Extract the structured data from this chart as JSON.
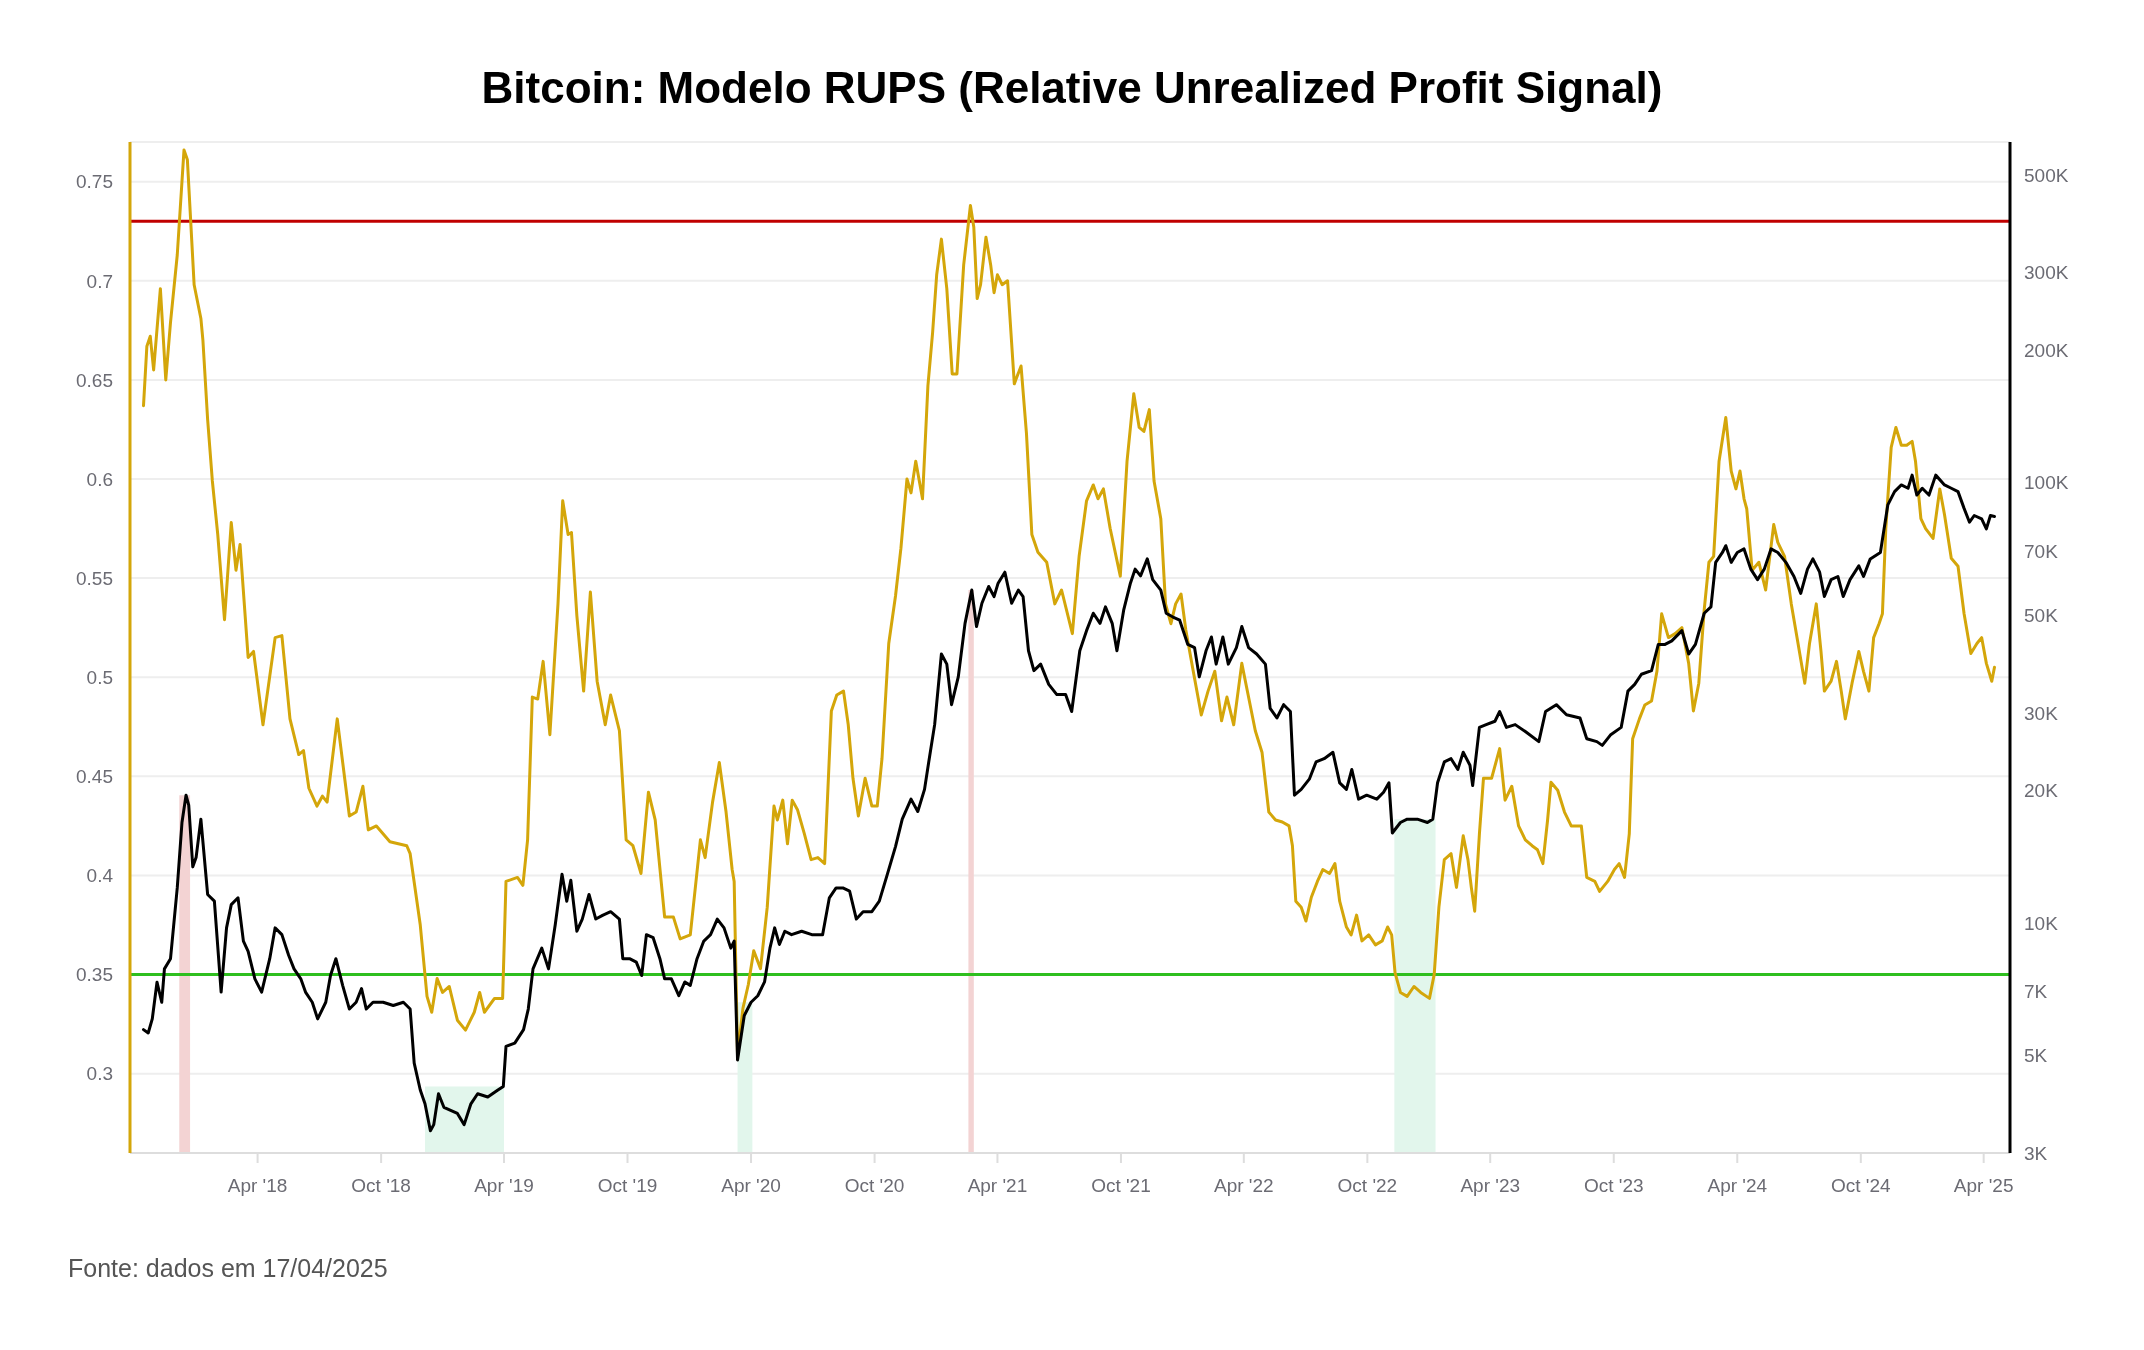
{
  "chart_data": {
    "type": "line",
    "title": "Bitcoin: Modelo RUPS (Relative Unrealized Profit Signal)",
    "annotations": [
      "Fonte: dados em 17/04/2025"
    ],
    "xlim": [
      "2017-09-24",
      "2025-05-10"
    ],
    "xticks": [
      {
        "value": "2018-04-01",
        "label": "Apr '18"
      },
      {
        "value": "2018-10-01",
        "label": "Oct '18"
      },
      {
        "value": "2019-04-01",
        "label": "Apr '19"
      },
      {
        "value": "2019-10-01",
        "label": "Oct '19"
      },
      {
        "value": "2020-04-01",
        "label": "Apr '20"
      },
      {
        "value": "2020-10-01",
        "label": "Oct '20"
      },
      {
        "value": "2021-04-01",
        "label": "Apr '21"
      },
      {
        "value": "2021-10-01",
        "label": "Oct '21"
      },
      {
        "value": "2022-04-01",
        "label": "Apr '22"
      },
      {
        "value": "2022-10-01",
        "label": "Oct '22"
      },
      {
        "value": "2023-04-01",
        "label": "Apr '23"
      },
      {
        "value": "2023-10-01",
        "label": "Oct '23"
      },
      {
        "value": "2024-04-01",
        "label": "Apr '24"
      },
      {
        "value": "2024-10-01",
        "label": "Oct '24"
      },
      {
        "value": "2025-04-01",
        "label": "Apr '25"
      }
    ],
    "ylim": [
      0.26,
      0.77
    ],
    "yticks": [
      0.3,
      0.35,
      0.4,
      0.45,
      0.5,
      0.55,
      0.6,
      0.65,
      0.7,
      0.75
    ],
    "y2lim": [
      3000,
      594000
    ],
    "y2ticks": [
      {
        "value": 3000,
        "label": "3K"
      },
      {
        "value": 5000,
        "label": "5K"
      },
      {
        "value": 7000,
        "label": "7K"
      },
      {
        "value": 10000,
        "label": "10K"
      },
      {
        "value": 20000,
        "label": "20K"
      },
      {
        "value": 30000,
        "label": "30K"
      },
      {
        "value": 50000,
        "label": "50K"
      },
      {
        "value": 70000,
        "label": "70K"
      },
      {
        "value": 100000,
        "label": "100K"
      },
      {
        "value": 200000,
        "label": "200K"
      },
      {
        "value": 300000,
        "label": "300K"
      },
      {
        "value": 500000,
        "label": "500K"
      }
    ],
    "log": "y2",
    "grid": "y",
    "ref_lines": [
      {
        "axis": "y",
        "value": 0.73,
        "color": "#c00000"
      },
      {
        "axis": "y",
        "value": 0.35,
        "color": "#2fbf1f"
      }
    ],
    "bands": [
      {
        "axis": "x",
        "from": "2017-12-06",
        "to": "2017-12-22",
        "color": "#f3d3d3"
      },
      {
        "axis": "x",
        "from": "2018-12-05",
        "to": "2019-04-01",
        "color": "#e2f6ec"
      },
      {
        "axis": "x",
        "from": "2020-03-12",
        "to": "2020-04-03",
        "color": "#e2f6ec"
      },
      {
        "axis": "x",
        "from": "2021-02-17",
        "to": "2021-02-25",
        "color": "#f3d3d3"
      },
      {
        "axis": "x",
        "from": "2022-11-10",
        "to": "2023-01-10",
        "color": "#e2f6ec"
      }
    ],
    "series": [
      {
        "color": "#d4a60a",
        "x": [
          "2017-10-14",
          "2017-10-19",
          "2017-10-24",
          "2017-10-29",
          "2017-11-08",
          "2017-11-16",
          "2017-11-23",
          "2017-12-03",
          "2017-12-13",
          "2017-12-18",
          "2017-12-28",
          "2018-01-07",
          "2018-01-10",
          "2018-01-17",
          "2018-01-24",
          "2018-02-01",
          "2018-02-11",
          "2018-02-21",
          "2018-02-28",
          "2018-03-06",
          "2018-03-18",
          "2018-03-26",
          "2018-04-09",
          "2018-04-27",
          "2018-05-07",
          "2018-05-19",
          "2018-06-01",
          "2018-06-08",
          "2018-06-16",
          "2018-06-28",
          "2018-07-06",
          "2018-07-13",
          "2018-07-28",
          "2018-08-15",
          "2018-08-25",
          "2018-09-04",
          "2018-09-12",
          "2018-09-24",
          "2018-10-14",
          "2018-11-08",
          "2018-11-13",
          "2018-11-28",
          "2018-12-08",
          "2018-12-15",
          "2018-12-23",
          "2018-12-31",
          "2019-01-10",
          "2019-01-22",
          "2019-02-03",
          "2019-02-16",
          "2019-02-24",
          "2019-03-03",
          "2019-03-18",
          "2019-03-30",
          "2019-04-04",
          "2019-04-21",
          "2019-04-29",
          "2019-05-06",
          "2019-05-13",
          "2019-05-21",
          "2019-05-29",
          "2019-06-08",
          "2019-06-20",
          "2019-06-27",
          "2019-07-05",
          "2019-07-10",
          "2019-07-18",
          "2019-07-28",
          "2019-08-07",
          "2019-08-17",
          "2019-08-29",
          "2019-09-06",
          "2019-09-19",
          "2019-09-29",
          "2019-10-09",
          "2019-10-21",
          "2019-11-01",
          "2019-11-11",
          "2019-11-25",
          "2019-12-08",
          "2019-12-18",
          "2020-01-02",
          "2020-01-17",
          "2020-01-24",
          "2020-02-04",
          "2020-02-14",
          "2020-02-24",
          "2020-03-04",
          "2020-03-07",
          "2020-03-12",
          "2020-03-20",
          "2020-03-28",
          "2020-04-05",
          "2020-04-15",
          "2020-04-25",
          "2020-05-05",
          "2020-05-10",
          "2020-05-18",
          "2020-05-25",
          "2020-06-01",
          "2020-06-09",
          "2020-06-19",
          "2020-06-29",
          "2020-07-09",
          "2020-07-19",
          "2020-07-29",
          "2020-08-06",
          "2020-08-16",
          "2020-08-23",
          "2020-08-30",
          "2020-09-07",
          "2020-09-17",
          "2020-09-27",
          "2020-10-05",
          "2020-10-12",
          "2020-10-22",
          "2020-11-01",
          "2020-11-09",
          "2020-11-18",
          "2020-11-24",
          "2020-12-01",
          "2020-12-11",
          "2020-12-19",
          "2020-12-26",
          "2021-01-01",
          "2021-01-08",
          "2021-01-16",
          "2021-01-24",
          "2021-01-31",
          "2021-02-10",
          "2021-02-20",
          "2021-02-25",
          "2021-03-02",
          "2021-03-07",
          "2021-03-15",
          "2021-03-22",
          "2021-03-27",
          "2021-04-01",
          "2021-04-08",
          "2021-04-16",
          "2021-04-26",
          "2021-05-06",
          "2021-05-14",
          "2021-05-22",
          "2021-05-31",
          "2021-06-13",
          "2021-06-25",
          "2021-07-05",
          "2021-07-21",
          "2021-07-31",
          "2021-08-11",
          "2021-08-21",
          "2021-08-28",
          "2021-09-05",
          "2021-09-15",
          "2021-09-30",
          "2021-10-10",
          "2021-10-20",
          "2021-10-28",
          "2021-11-04",
          "2021-11-12",
          "2021-11-19",
          "2021-11-29",
          "2021-12-06",
          "2021-12-14",
          "2021-12-21",
          "2021-12-29",
          "2022-01-05",
          "2022-01-15",
          "2022-01-28",
          "2022-02-07",
          "2022-02-17",
          "2022-02-27",
          "2022-03-07",
          "2022-03-17",
          "2022-03-29",
          "2022-04-08",
          "2022-04-18",
          "2022-04-28",
          "2022-05-08",
          "2022-05-18",
          "2022-05-28",
          "2022-06-07",
          "2022-06-12",
          "2022-06-17",
          "2022-06-25",
          "2022-07-02",
          "2022-07-10",
          "2022-07-19",
          "2022-07-27",
          "2022-08-06",
          "2022-08-14",
          "2022-08-21",
          "2022-08-31",
          "2022-09-07",
          "2022-09-15",
          "2022-09-23",
          "2022-10-03",
          "2022-10-13",
          "2022-10-23",
          "2022-10-31",
          "2022-11-06",
          "2022-11-11",
          "2022-11-19",
          "2022-11-29",
          "2022-12-09",
          "2022-12-19",
          "2023-01-01",
          "2023-01-08",
          "2023-01-15",
          "2023-01-23",
          "2023-02-02",
          "2023-02-10",
          "2023-02-20",
          "2023-02-27",
          "2023-03-04",
          "2023-03-09",
          "2023-03-16",
          "2023-03-22",
          "2023-04-03",
          "2023-04-15",
          "2023-04-23",
          "2023-05-03",
          "2023-05-13",
          "2023-05-23",
          "2023-06-02",
          "2023-06-10",
          "2023-06-18",
          "2023-06-25",
          "2023-06-30",
          "2023-07-10",
          "2023-07-20",
          "2023-07-30",
          "2023-08-14",
          "2023-08-22",
          "2023-09-03",
          "2023-09-10",
          "2023-09-22",
          "2023-10-02",
          "2023-10-09",
          "2023-10-17",
          "2023-10-24",
          "2023-10-29",
          "2023-11-08",
          "2023-11-16",
          "2023-11-26",
          "2023-12-04",
          "2023-12-11",
          "2023-12-21",
          "2023-12-31",
          "2024-01-10",
          "2024-01-20",
          "2024-01-27",
          "2024-02-04",
          "2024-02-12",
          "2024-02-19",
          "2024-02-26",
          "2024-03-05",
          "2024-03-15",
          "2024-03-23",
          "2024-03-30",
          "2024-04-05",
          "2024-04-11",
          "2024-04-15",
          "2024-04-23",
          "2024-05-03",
          "2024-05-13",
          "2024-05-25",
          "2024-05-31",
          "2024-06-10",
          "2024-06-20",
          "2024-06-30",
          "2024-07-10",
          "2024-07-17",
          "2024-07-27",
          "2024-08-03",
          "2024-08-08",
          "2024-08-18",
          "2024-08-26",
          "2024-09-02",
          "2024-09-08",
          "2024-09-18",
          "2024-09-28",
          "2024-10-05",
          "2024-10-13",
          "2024-10-20",
          "2024-10-28",
          "2024-11-02",
          "2024-11-07",
          "2024-11-15",
          "2024-11-22",
          "2024-11-30",
          "2024-12-08",
          "2024-12-16",
          "2024-12-21",
          "2024-12-29",
          "2025-01-05",
          "2025-01-16",
          "2025-01-26",
          "2025-02-02",
          "2025-02-12",
          "2025-02-22",
          "2025-03-03",
          "2025-03-13",
          "2025-03-22",
          "2025-03-29",
          "2025-04-05",
          "2025-04-13",
          "2025-04-17"
        ],
        "values": [
          0.637,
          0.667,
          0.672,
          0.655,
          0.696,
          0.65,
          0.679,
          0.713,
          0.766,
          0.761,
          0.698,
          0.681,
          0.67,
          0.63,
          0.599,
          0.572,
          0.529,
          0.578,
          0.554,
          0.567,
          0.51,
          0.513,
          0.476,
          0.52,
          0.521,
          0.479,
          0.461,
          0.463,
          0.444,
          0.435,
          0.44,
          0.437,
          0.479,
          0.43,
          0.432,
          0.445,
          0.423,
          0.425,
          0.417,
          0.415,
          0.411,
          0.375,
          0.339,
          0.331,
          0.348,
          0.341,
          0.344,
          0.327,
          0.322,
          0.331,
          0.341,
          0.331,
          0.338,
          0.338,
          0.397,
          0.399,
          0.395,
          0.418,
          0.49,
          0.489,
          0.508,
          0.471,
          0.537,
          0.589,
          0.572,
          0.573,
          0.531,
          0.493,
          0.543,
          0.498,
          0.476,
          0.491,
          0.473,
          0.418,
          0.415,
          0.401,
          0.442,
          0.428,
          0.379,
          0.379,
          0.368,
          0.37,
          0.418,
          0.409,
          0.437,
          0.457,
          0.432,
          0.403,
          0.397,
          0.309,
          0.333,
          0.345,
          0.362,
          0.353,
          0.384,
          0.435,
          0.428,
          0.438,
          0.416,
          0.438,
          0.433,
          0.421,
          0.408,
          0.409,
          0.406,
          0.483,
          0.491,
          0.493,
          0.476,
          0.449,
          0.43,
          0.449,
          0.435,
          0.435,
          0.459,
          0.517,
          0.541,
          0.565,
          0.6,
          0.593,
          0.609,
          0.59,
          0.647,
          0.674,
          0.703,
          0.721,
          0.696,
          0.653,
          0.653,
          0.708,
          0.738,
          0.727,
          0.691,
          0.698,
          0.722,
          0.708,
          0.694,
          0.703,
          0.698,
          0.7,
          0.648,
          0.657,
          0.623,
          0.572,
          0.563,
          0.558,
          0.537,
          0.544,
          0.522,
          0.561,
          0.589,
          0.597,
          0.59,
          0.595,
          0.575,
          0.551,
          0.609,
          0.643,
          0.626,
          0.624,
          0.635,
          0.599,
          0.58,
          0.537,
          0.527,
          0.537,
          0.542,
          0.524,
          0.505,
          0.481,
          0.493,
          0.503,
          0.478,
          0.49,
          0.476,
          0.507,
          0.49,
          0.473,
          0.462,
          0.432,
          0.428,
          0.427,
          0.425,
          0.415,
          0.387,
          0.384,
          0.377,
          0.389,
          0.397,
          0.403,
          0.401,
          0.406,
          0.387,
          0.374,
          0.37,
          0.38,
          0.367,
          0.37,
          0.365,
          0.367,
          0.374,
          0.37,
          0.351,
          0.341,
          0.339,
          0.344,
          0.341,
          0.338,
          0.35,
          0.384,
          0.408,
          0.411,
          0.394,
          0.42,
          0.408,
          0.394,
          0.382,
          0.421,
          0.449,
          0.449,
          0.464,
          0.438,
          0.445,
          0.425,
          0.418,
          0.415,
          0.413,
          0.406,
          0.428,
          0.447,
          0.443,
          0.432,
          0.425,
          0.425,
          0.399,
          0.397,
          0.392,
          0.397,
          0.403,
          0.406,
          0.399,
          0.421,
          0.469,
          0.479,
          0.486,
          0.488,
          0.503,
          0.532,
          0.52,
          0.522,
          0.525,
          0.507,
          0.483,
          0.497,
          0.534,
          0.558,
          0.561,
          0.609,
          0.631,
          0.604,
          0.595,
          0.604,
          0.59,
          0.585,
          0.554,
          0.558,
          0.544,
          0.577,
          0.568,
          0.561,
          0.537,
          0.517,
          0.497,
          0.517,
          0.537,
          0.513,
          0.493,
          0.498,
          0.508,
          0.493,
          0.479,
          0.497,
          0.513,
          0.503,
          0.493,
          0.52,
          0.527,
          0.532,
          0.575,
          0.616,
          0.626,
          0.617,
          0.617,
          0.619,
          0.609,
          0.58,
          0.575,
          0.57,
          0.595,
          0.582,
          0.56,
          0.556,
          0.532,
          0.512,
          0.517,
          0.52,
          0.507,
          0.498,
          0.505
        ]
      },
      {
        "color": "#000000",
        "axis": "y2",
        "x": [
          "2017-10-14",
          "2017-10-21",
          "2017-10-27",
          "2017-11-03",
          "2017-11-10",
          "2017-11-14",
          "2017-11-23",
          "2017-12-03",
          "2017-12-10",
          "2017-12-16",
          "2017-12-20",
          "2017-12-26",
          "2017-12-31",
          "2018-01-07",
          "2018-01-17",
          "2018-01-27",
          "2018-02-06",
          "2018-02-14",
          "2018-02-21",
          "2018-03-03",
          "2018-03-11",
          "2018-03-18",
          "2018-03-28",
          "2018-04-07",
          "2018-04-19",
          "2018-04-27",
          "2018-05-07",
          "2018-05-17",
          "2018-05-25",
          "2018-06-04",
          "2018-06-11",
          "2018-06-21",
          "2018-06-29",
          "2018-07-11",
          "2018-07-18",
          "2018-07-26",
          "2018-08-05",
          "2018-08-15",
          "2018-08-25",
          "2018-09-02",
          "2018-09-09",
          "2018-09-19",
          "2018-10-04",
          "2018-10-19",
          "2018-11-03",
          "2018-11-13",
          "2018-11-19",
          "2018-11-28",
          "2018-12-05",
          "2018-12-13",
          "2018-12-18",
          "2018-12-25",
          "2019-01-02",
          "2019-01-12",
          "2019-01-22",
          "2019-02-01",
          "2019-02-11",
          "2019-02-21",
          "2019-03-08",
          "2019-03-23",
          "2019-03-31",
          "2019-04-04",
          "2019-04-17",
          "2019-04-30",
          "2019-05-07",
          "2019-05-14",
          "2019-05-27",
          "2019-06-06",
          "2019-06-16",
          "2019-06-26",
          "2019-07-03",
          "2019-07-09",
          "2019-07-18",
          "2019-07-26",
          "2019-08-05",
          "2019-08-15",
          "2019-08-25",
          "2019-09-06",
          "2019-09-19",
          "2019-09-24",
          "2019-10-04",
          "2019-10-14",
          "2019-10-22",
          "2019-10-29",
          "2019-11-08",
          "2019-11-18",
          "2019-11-25",
          "2019-12-05",
          "2019-12-16",
          "2019-12-25",
          "2020-01-02",
          "2020-01-12",
          "2020-01-22",
          "2020-02-01",
          "2020-02-11",
          "2020-02-21",
          "2020-03-02",
          "2020-03-07",
          "2020-03-12",
          "2020-03-22",
          "2020-04-01",
          "2020-04-11",
          "2020-04-21",
          "2020-04-29",
          "2020-05-06",
          "2020-05-13",
          "2020-05-21",
          "2020-05-31",
          "2020-06-15",
          "2020-06-30",
          "2020-07-16",
          "2020-07-26",
          "2020-08-05",
          "2020-08-15",
          "2020-08-25",
          "2020-09-04",
          "2020-09-14",
          "2020-09-27",
          "2020-10-08",
          "2020-10-20",
          "2020-11-01",
          "2020-11-11",
          "2020-11-24",
          "2020-12-04",
          "2020-12-14",
          "2020-12-21",
          "2020-12-29",
          "2021-01-08",
          "2021-01-16",
          "2021-01-23",
          "2021-02-02",
          "2021-02-12",
          "2021-02-22",
          "2021-03-01",
          "2021-03-09",
          "2021-03-19",
          "2021-03-27",
          "2021-04-02",
          "2021-04-12",
          "2021-04-22",
          "2021-05-02",
          "2021-05-09",
          "2021-05-17",
          "2021-05-25",
          "2021-06-04",
          "2021-06-16",
          "2021-06-28",
          "2021-07-11",
          "2021-07-20",
          "2021-08-01",
          "2021-08-11",
          "2021-08-21",
          "2021-08-31",
          "2021-09-08",
          "2021-09-18",
          "2021-09-25",
          "2021-10-05",
          "2021-10-15",
          "2021-10-22",
          "2021-10-30",
          "2021-11-09",
          "2021-11-17",
          "2021-11-29",
          "2021-12-07",
          "2021-12-17",
          "2021-12-27",
          "2022-01-08",
          "2022-01-18",
          "2022-01-25",
          "2022-02-04",
          "2022-02-12",
          "2022-02-19",
          "2022-03-01",
          "2022-03-09",
          "2022-03-21",
          "2022-03-29",
          "2022-04-08",
          "2022-04-20",
          "2022-05-03",
          "2022-05-10",
          "2022-05-20",
          "2022-05-30",
          "2022-06-09",
          "2022-06-15",
          "2022-06-25",
          "2022-07-07",
          "2022-07-17",
          "2022-07-29",
          "2022-08-11",
          "2022-08-21",
          "2022-08-31",
          "2022-09-08",
          "2022-09-18",
          "2022-09-30",
          "2022-10-15",
          "2022-10-25",
          "2022-11-02",
          "2022-11-07",
          "2022-11-19",
          "2022-11-29",
          "2022-12-14",
          "2022-12-29",
          "2023-01-06",
          "2023-01-13",
          "2023-01-23",
          "2023-02-02",
          "2023-02-12",
          "2023-02-20",
          "2023-03-02",
          "2023-03-06",
          "2023-03-16",
          "2023-03-26",
          "2023-04-08",
          "2023-04-15",
          "2023-04-25",
          "2023-05-08",
          "2023-05-23",
          "2023-06-12",
          "2023-06-22",
          "2023-07-08",
          "2023-07-23",
          "2023-08-12",
          "2023-08-22",
          "2023-09-06",
          "2023-09-14",
          "2023-09-26",
          "2023-10-12",
          "2023-10-22",
          "2023-11-01",
          "2023-11-11",
          "2023-11-26",
          "2023-12-06",
          "2023-12-16",
          "2023-12-26",
          "2024-01-10",
          "2024-01-20",
          "2024-01-30",
          "2024-02-12",
          "2024-02-22",
          "2024-02-29",
          "2024-03-10",
          "2024-03-15",
          "2024-03-23",
          "2024-04-01",
          "2024-04-11",
          "2024-04-21",
          "2024-05-01",
          "2024-05-11",
          "2024-05-21",
          "2024-05-31",
          "2024-06-12",
          "2024-06-24",
          "2024-07-04",
          "2024-07-14",
          "2024-07-22",
          "2024-08-01",
          "2024-08-08",
          "2024-08-18",
          "2024-08-28",
          "2024-09-05",
          "2024-09-15",
          "2024-09-28",
          "2024-10-05",
          "2024-10-15",
          "2024-10-30",
          "2024-11-10",
          "2024-11-20",
          "2024-11-30",
          "2024-12-10",
          "2024-12-16",
          "2024-12-23",
          "2024-12-31",
          "2025-01-10",
          "2025-01-20",
          "2025-02-02",
          "2025-02-12",
          "2025-02-22",
          "2025-03-03",
          "2025-03-11",
          "2025-03-18",
          "2025-03-29",
          "2025-04-05",
          "2025-04-11",
          "2025-04-17"
        ],
        "values": [
          5720,
          5620,
          6050,
          7330,
          6600,
          7860,
          8290,
          12000,
          16900,
          19500,
          18500,
          13400,
          14100,
          17200,
          11600,
          11200,
          6960,
          9740,
          11000,
          11400,
          9090,
          8610,
          7460,
          6960,
          8290,
          9740,
          9400,
          8440,
          7860,
          7460,
          6960,
          6600,
          6050,
          6600,
          7590,
          8290,
          7210,
          6370,
          6600,
          7090,
          6370,
          6600,
          6600,
          6490,
          6600,
          6370,
          4800,
          4170,
          3880,
          3370,
          3480,
          4090,
          3810,
          3750,
          3690,
          3480,
          3880,
          4090,
          4020,
          4170,
          4250,
          5240,
          5330,
          5720,
          6370,
          7860,
          8760,
          7860,
          9910,
          12900,
          11200,
          12500,
          9570,
          10200,
          11600,
          10200,
          10400,
          10600,
          10200,
          8290,
          8290,
          8140,
          7590,
          9400,
          9250,
          8290,
          7460,
          7460,
          6830,
          7340,
          7210,
          8290,
          9090,
          9400,
          10200,
          9740,
          8760,
          9090,
          4880,
          6160,
          6600,
          6830,
          7340,
          8760,
          9740,
          8930,
          9570,
          9400,
          9570,
          9400,
          9400,
          11400,
          12000,
          12000,
          11800,
          10200,
          10600,
          10600,
          11200,
          12900,
          14900,
          17200,
          19100,
          17900,
          20100,
          23600,
          28200,
          40800,
          38700,
          31300,
          36200,
          47900,
          57000,
          47100,
          53200,
          58100,
          55100,
          59100,
          62600,
          53200,
          57000,
          55100,
          41500,
          37400,
          38700,
          34800,
          33000,
          33000,
          30200,
          41500,
          46100,
          50500,
          47900,
          52200,
          47900,
          41500,
          51300,
          59100,
          63600,
          61400,
          67100,
          60200,
          57000,
          50500,
          49500,
          48700,
          42900,
          42200,
          36200,
          41500,
          44600,
          38700,
          44600,
          38700,
          42200,
          47100,
          42200,
          40800,
          38700,
          30700,
          29200,
          31300,
          30200,
          19500,
          20100,
          21200,
          23200,
          23600,
          24400,
          20800,
          20100,
          22300,
          19100,
          19500,
          19100,
          19800,
          20800,
          16000,
          16900,
          17200,
          17200,
          16900,
          17200,
          20800,
          23200,
          23600,
          22300,
          24400,
          22800,
          20500,
          27800,
          28200,
          28700,
          30200,
          27800,
          28200,
          27200,
          25800,
          30200,
          31300,
          29700,
          29200,
          26200,
          25800,
          25300,
          26700,
          27800,
          33600,
          34800,
          36700,
          37400,
          42900,
          42900,
          43700,
          46100,
          40800,
          42900,
          50500,
          52200,
          65900,
          69400,
          71900,
          65900,
          69400,
          70700,
          63600,
          60200,
          63600,
          70700,
          69400,
          65900,
          61200,
          56000,
          63600,
          67100,
          62600,
          55100,
          60200,
          61200,
          55100,
          60200,
          64700,
          61200,
          67100,
          69400,
          89000,
          95400,
          98800,
          97100,
          104000,
          93700,
          97100,
          93700,
          104000,
          98800,
          97100,
          95400,
          87400,
          81300,
          84200,
          82700,
          78500,
          84200,
          83800
        ]
      }
    ]
  }
}
